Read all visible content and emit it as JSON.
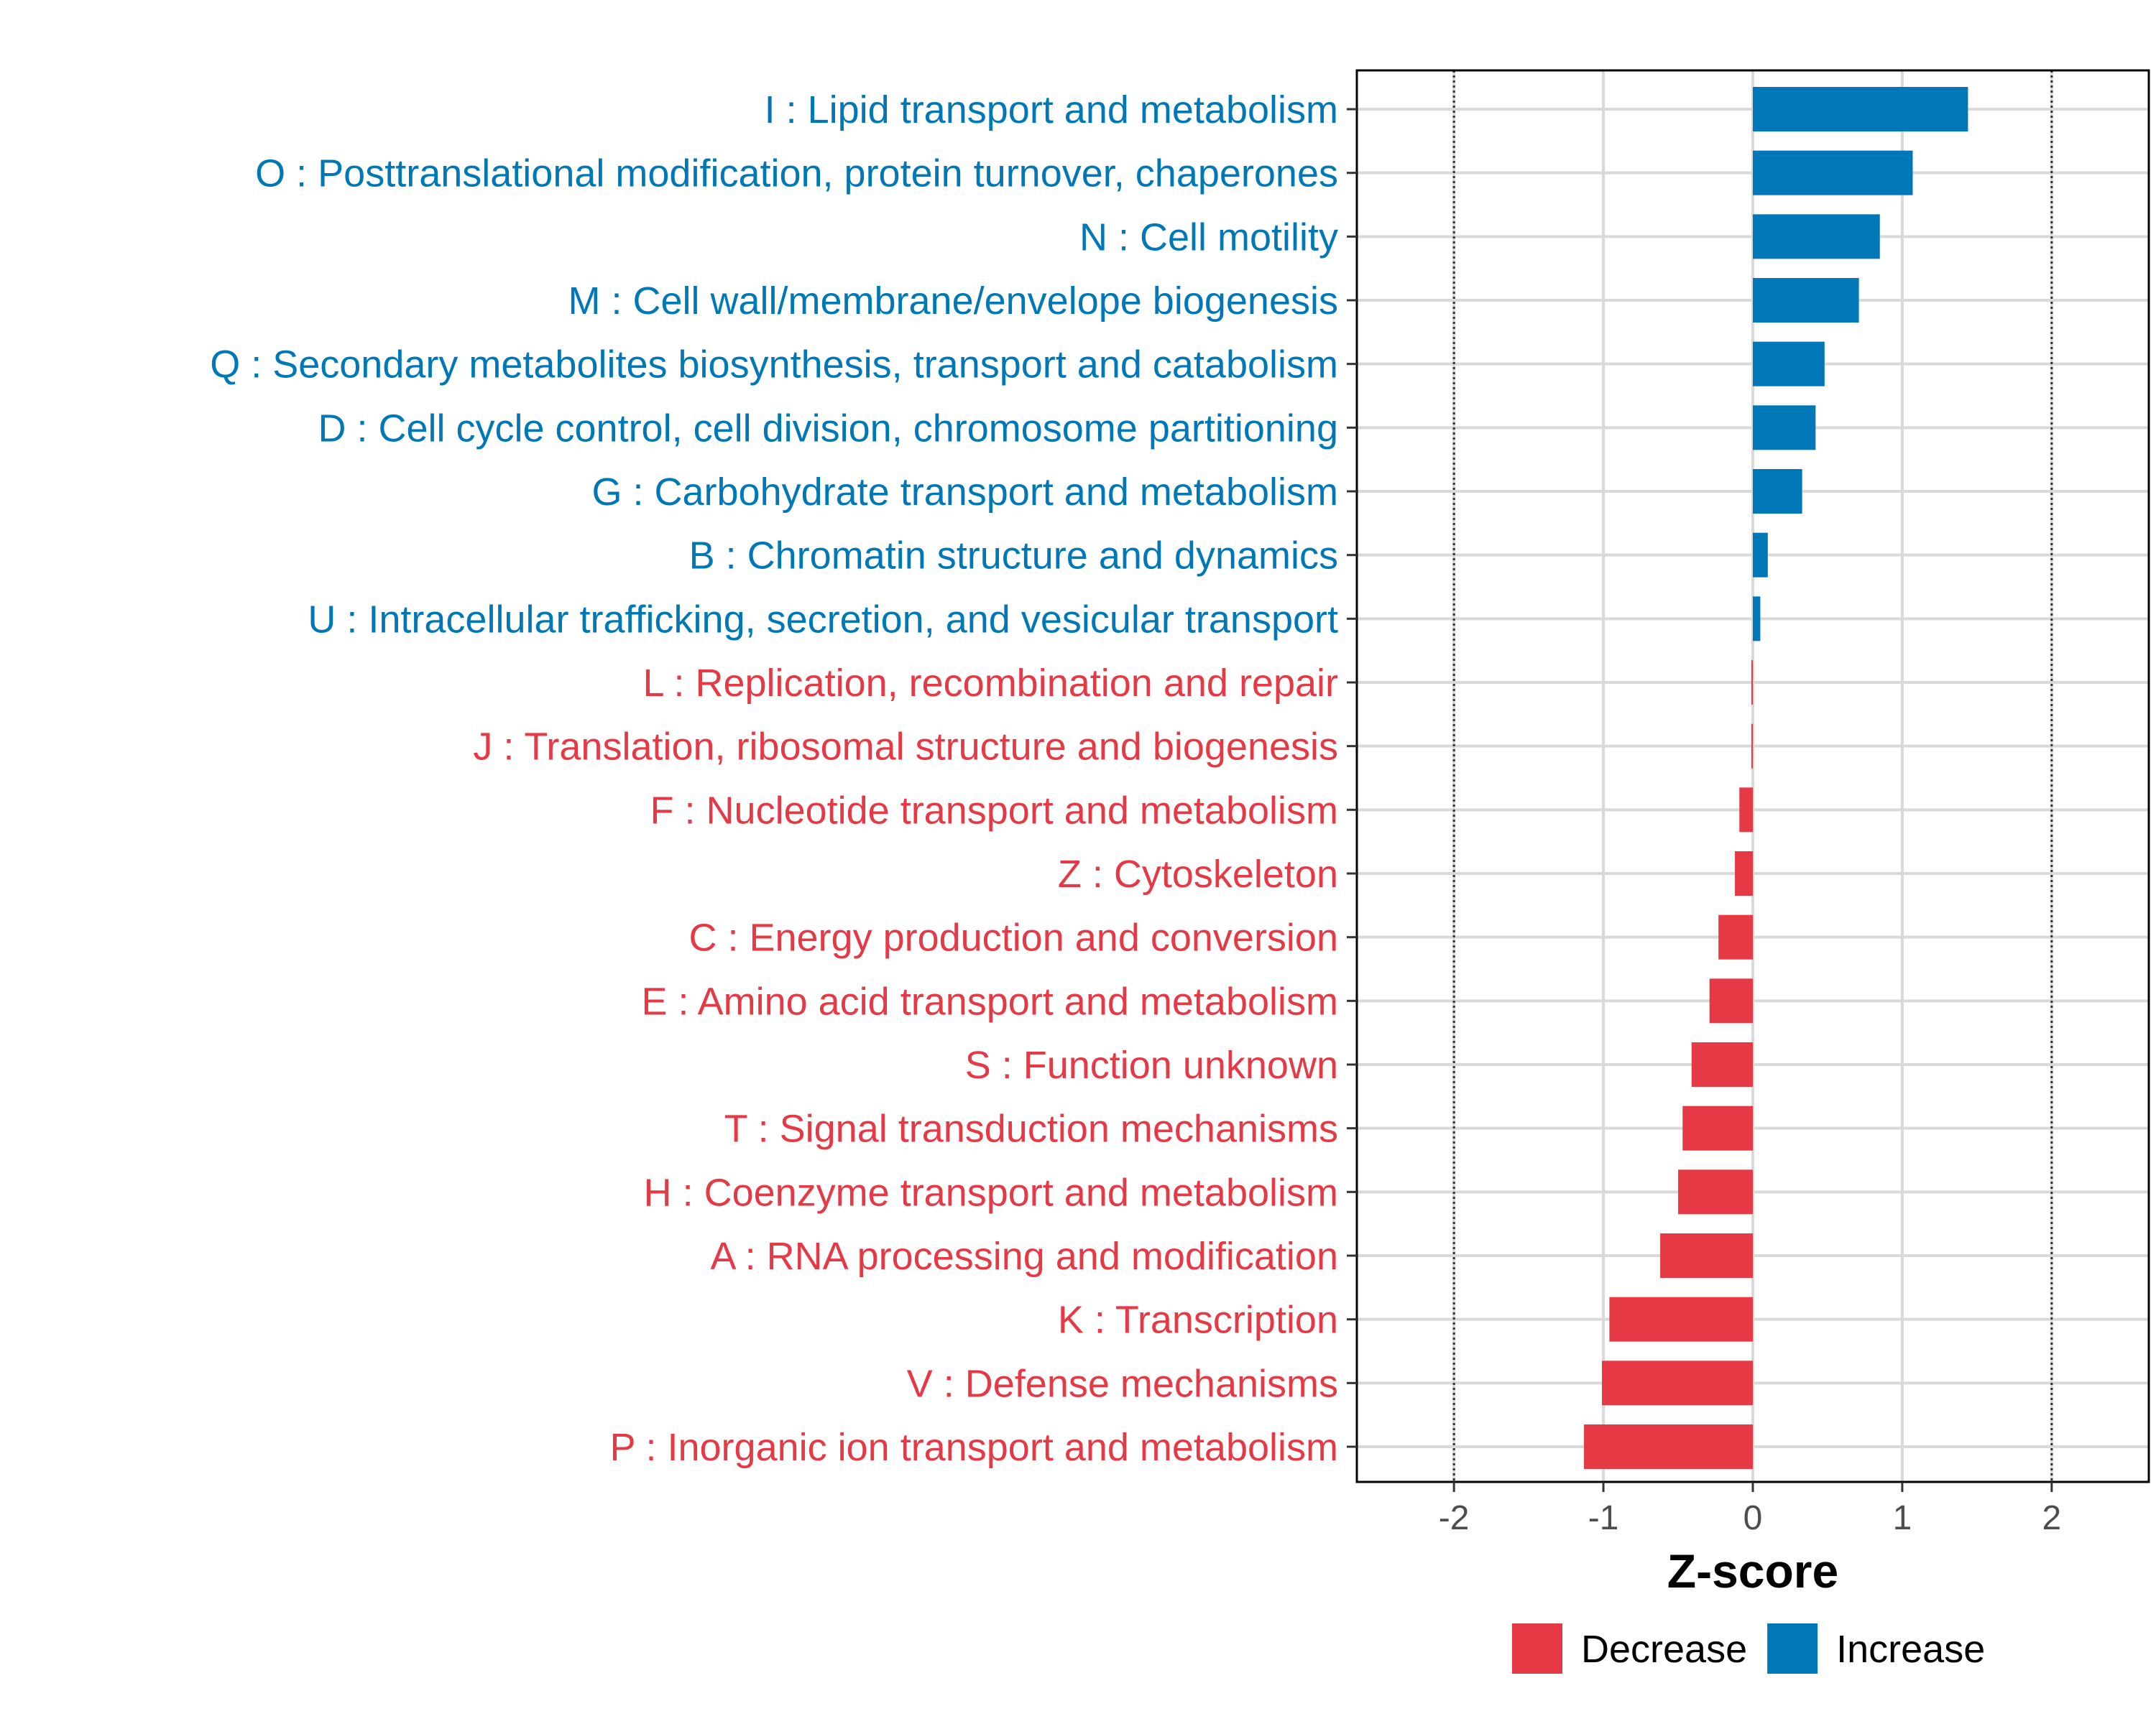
{
  "chart_data": {
    "type": "bar",
    "orientation": "horizontal",
    "xlabel": "Z-score",
    "xlim": [
      -2.65,
      2.65
    ],
    "xticks": [
      -2,
      -1,
      0,
      1,
      2
    ],
    "xtick_labels": [
      "-2",
      "-1",
      "0",
      "1",
      "2"
    ],
    "reference_lines": [
      -2,
      2
    ],
    "grid": true,
    "categories": [
      {
        "label": "I : Lipid transport and metabolism",
        "value": 1.44,
        "group": "Increase"
      },
      {
        "label": "O : Posttranslational modification, protein turnover, chaperones",
        "value": 1.07,
        "group": "Increase"
      },
      {
        "label": "N : Cell motility",
        "value": 0.85,
        "group": "Increase"
      },
      {
        "label": "M : Cell wall/membrane/envelope biogenesis",
        "value": 0.71,
        "group": "Increase"
      },
      {
        "label": "Q : Secondary metabolites biosynthesis, transport and catabolism",
        "value": 0.48,
        "group": "Increase"
      },
      {
        "label": "D : Cell cycle control, cell division, chromosome partitioning",
        "value": 0.42,
        "group": "Increase"
      },
      {
        "label": "G : Carbohydrate transport and metabolism",
        "value": 0.33,
        "group": "Increase"
      },
      {
        "label": "B : Chromatin structure and dynamics",
        "value": 0.1,
        "group": "Increase"
      },
      {
        "label": "U : Intracellular trafficking, secretion, and vesicular transport",
        "value": 0.05,
        "group": "Increase"
      },
      {
        "label": "L : Replication, recombination and repair",
        "value": -0.01,
        "group": "Decrease"
      },
      {
        "label": "J : Translation, ribosomal structure and biogenesis",
        "value": -0.01,
        "group": "Decrease"
      },
      {
        "label": "F : Nucleotide transport and metabolism",
        "value": -0.09,
        "group": "Decrease"
      },
      {
        "label": "Z : Cytoskeleton",
        "value": -0.12,
        "group": "Decrease"
      },
      {
        "label": "C : Energy production and conversion",
        "value": -0.23,
        "group": "Decrease"
      },
      {
        "label": "E : Amino acid transport and metabolism",
        "value": -0.29,
        "group": "Decrease"
      },
      {
        "label": "S : Function unknown",
        "value": -0.41,
        "group": "Decrease"
      },
      {
        "label": "T : Signal transduction mechanisms",
        "value": -0.47,
        "group": "Decrease"
      },
      {
        "label": "H : Coenzyme transport and metabolism",
        "value": -0.5,
        "group": "Decrease"
      },
      {
        "label": "A : RNA processing and modification",
        "value": -0.62,
        "group": "Decrease"
      },
      {
        "label": "K : Transcription",
        "value": -0.96,
        "group": "Decrease"
      },
      {
        "label": "V : Defense mechanisms",
        "value": -1.01,
        "group": "Decrease"
      },
      {
        "label": "P : Inorganic ion transport and metabolism",
        "value": -1.13,
        "group": "Decrease"
      }
    ],
    "legend": {
      "placement": "bottom-right",
      "items": [
        {
          "label": "Decrease",
          "color": "#e63946"
        },
        {
          "label": "Increase",
          "color": "#0077b6"
        }
      ]
    },
    "colors": {
      "Decrease": "#e63946",
      "Increase": "#0077b6"
    }
  }
}
